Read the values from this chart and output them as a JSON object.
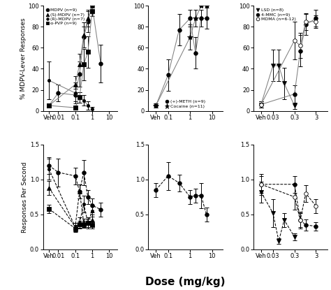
{
  "panel_top_left": {
    "series": [
      {
        "label": "MDPV (n=9)",
        "marker": "o",
        "markersize": 4,
        "x": [
          0,
          0.01,
          0.1,
          0.18,
          0.32,
          0.56,
          1.0,
          3.2
        ],
        "y": [
          5,
          17,
          15,
          35,
          70,
          85,
          100,
          45
        ],
        "yerr": [
          2,
          8,
          6,
          12,
          10,
          10,
          0,
          18
        ],
        "linestyle": "-",
        "linecolor": "gray",
        "markercolor": "black",
        "fillstyle": "full"
      },
      {
        "label": "(S)-MDPV (n=7)",
        "marker": "^",
        "markersize": 4,
        "x": [
          0,
          0.1,
          0.18,
          0.32,
          0.56,
          1.0
        ],
        "y": [
          5,
          25,
          44,
          72,
          88,
          100
        ],
        "yerr": [
          2,
          8,
          10,
          12,
          8,
          0
        ],
        "linestyle": "-",
        "linecolor": "gray",
        "markercolor": "black",
        "fillstyle": "full"
      },
      {
        "label": "(R)-MDPV (n=7)",
        "marker": ".",
        "markersize": 6,
        "x": [
          0,
          0.1,
          0.18,
          0.32,
          0.56,
          1.0
        ],
        "y": [
          29,
          17,
          13,
          10,
          5,
          2
        ],
        "yerr": [
          18,
          10,
          5,
          5,
          4,
          2
        ],
        "linestyle": "-",
        "linecolor": "gray",
        "markercolor": "black",
        "fillstyle": "full"
      },
      {
        "label": "α-PVP (n=9)",
        "marker": "s",
        "markersize": 4,
        "x": [
          0,
          0.1,
          0.18,
          0.32,
          0.56,
          1.0
        ],
        "y": [
          5,
          3,
          13,
          44,
          56,
          95
        ],
        "yerr": [
          2,
          2,
          5,
          15,
          15,
          5
        ],
        "linestyle": "-",
        "linecolor": "gray",
        "markercolor": "black",
        "fillstyle": "full"
      }
    ],
    "xticks_log": [
      0.01,
      0.1,
      1.0,
      10
    ],
    "xtick_labels": [
      "0.01",
      "0.1",
      "1",
      "10"
    ],
    "xmax_factor": 3.0,
    "ylim": [
      0,
      100
    ],
    "yticks": [
      0,
      20,
      40,
      60,
      80,
      100
    ],
    "ylabel": "% MDPV-Lever Responses",
    "legend_loc": "upper left",
    "legend": true
  },
  "panel_top_mid": {
    "series": [
      {
        "label": "(+)-METH (n=9)",
        "marker": "o",
        "markersize": 4,
        "x": [
          0,
          0.1,
          0.32,
          1.0,
          1.78,
          3.2,
          5.6
        ],
        "y": [
          5,
          34,
          77,
          88,
          55,
          88,
          88
        ],
        "yerr": [
          2,
          15,
          15,
          8,
          15,
          8,
          10
        ],
        "linestyle": "-",
        "linecolor": "gray",
        "markercolor": "black",
        "fillstyle": "full"
      },
      {
        "label": "Cocaine (n=11)",
        "marker": "*",
        "markersize": 6,
        "x": [
          0,
          1.0,
          1.78,
          3.2,
          5.6
        ],
        "y": [
          5,
          70,
          88,
          100,
          100
        ],
        "yerr": [
          2,
          12,
          8,
          0,
          0
        ],
        "linestyle": "-",
        "linecolor": "gray",
        "markercolor": "black",
        "fillstyle": "full"
      }
    ],
    "xticks_log": [
      0.1,
      1.0,
      10
    ],
    "xtick_labels": [
      "0.1",
      "1",
      "10"
    ],
    "xmax_factor": 3.0,
    "ylim": [
      0,
      100
    ],
    "yticks": [
      0,
      20,
      40,
      60,
      80,
      100
    ],
    "ylabel": "",
    "legend_loc": "lower center",
    "legend": true
  },
  "panel_top_right": {
    "series": [
      {
        "label": "LSD (n=8)",
        "marker": "v",
        "markersize": 4,
        "x": [
          0,
          0.03,
          0.056,
          0.1,
          0.3
        ],
        "y": [
          6,
          43,
          43,
          26,
          5
        ],
        "yerr": [
          3,
          15,
          15,
          15,
          3
        ],
        "linestyle": "-",
        "linecolor": "gray",
        "markercolor": "black",
        "fillstyle": "full"
      },
      {
        "label": "4-MMC (n=9)",
        "marker": "o",
        "markersize": 4,
        "x": [
          0,
          0.3,
          0.56,
          1.0,
          3.0
        ],
        "y": [
          6,
          16,
          57,
          82,
          88
        ],
        "yerr": [
          3,
          8,
          15,
          10,
          8
        ],
        "linestyle": "-",
        "linecolor": "gray",
        "markercolor": "black",
        "fillstyle": "full"
      },
      {
        "label": "MDMA (n=6-12)",
        "marker": "o",
        "markersize": 4,
        "x": [
          0,
          0.3,
          0.56,
          1.0,
          3.0
        ],
        "y": [
          6,
          67,
          62,
          85,
          85
        ],
        "yerr": [
          3,
          18,
          12,
          8,
          6
        ],
        "linestyle": "-",
        "linecolor": "gray",
        "markercolor": "black",
        "fillstyle": "none"
      }
    ],
    "xticks_log": [
      0.03,
      0.3,
      3.0
    ],
    "xtick_labels": [
      "0.03",
      "0.3",
      "3"
    ],
    "xmax_factor": 3.5,
    "ylim": [
      0,
      100
    ],
    "yticks": [
      0,
      20,
      40,
      60,
      80,
      100
    ],
    "ylabel": "",
    "legend_loc": "upper left",
    "legend": true
  },
  "panel_bot_left": {
    "series": [
      {
        "label": "MDPV (n=9)",
        "marker": "o",
        "markersize": 4,
        "x": [
          0,
          0.01,
          0.1,
          0.18,
          0.32,
          0.56,
          1.0,
          3.2
        ],
        "y": [
          1.2,
          1.1,
          1.05,
          0.83,
          1.1,
          0.75,
          0.63,
          0.57
        ],
        "yerr": [
          0.12,
          0.2,
          0.12,
          0.1,
          0.18,
          0.1,
          0.1,
          0.1
        ],
        "linestyle": "--",
        "linecolor": "black",
        "markercolor": "black",
        "fillstyle": "full"
      },
      {
        "label": "(S)-MDPV (n=7)",
        "marker": "^",
        "markersize": 4,
        "x": [
          0,
          0.1,
          0.18,
          0.32,
          0.56,
          1.0
        ],
        "y": [
          0.88,
          0.32,
          0.83,
          0.38,
          0.38,
          0.42
        ],
        "yerr": [
          0.1,
          0.06,
          0.1,
          0.06,
          0.06,
          0.08
        ],
        "linestyle": "--",
        "linecolor": "black",
        "markercolor": "black",
        "fillstyle": "full"
      },
      {
        "label": "(R)-MDPV (n=7)",
        "marker": ".",
        "markersize": 6,
        "x": [
          0,
          0.1,
          0.18,
          0.32,
          0.56,
          1.0
        ],
        "y": [
          1.15,
          0.32,
          0.38,
          0.65,
          0.38,
          0.55
        ],
        "yerr": [
          0.15,
          0.06,
          0.08,
          0.12,
          0.08,
          0.08
        ],
        "linestyle": "--",
        "linecolor": "black",
        "markercolor": "black",
        "fillstyle": "full"
      },
      {
        "label": "α-PVP (n=9)",
        "marker": "s",
        "markersize": 4,
        "x": [
          0,
          0.1,
          0.18,
          0.32,
          0.56,
          1.0
        ],
        "y": [
          0.58,
          0.3,
          0.36,
          0.36,
          0.38,
          0.35
        ],
        "yerr": [
          0.06,
          0.05,
          0.05,
          0.05,
          0.06,
          0.05
        ],
        "linestyle": "--",
        "linecolor": "black",
        "markercolor": "black",
        "fillstyle": "full"
      }
    ],
    "xticks_log": [
      0.01,
      0.1,
      1.0,
      10
    ],
    "xtick_labels": [
      "0.01",
      "0.1",
      "1",
      "10"
    ],
    "xmax_factor": 3.0,
    "ylim": [
      0.0,
      1.5
    ],
    "yticks": [
      0.0,
      0.5,
      1.0,
      1.5
    ],
    "ylabel": "Responses Per Second",
    "legend": false
  },
  "panel_bot_mid": {
    "series": [
      {
        "label": "(+)-METH (n=9)",
        "marker": "o",
        "markersize": 4,
        "x": [
          0,
          0.1,
          0.32,
          1.0,
          1.78,
          3.2,
          5.6
        ],
        "y": [
          0.85,
          1.05,
          0.95,
          0.75,
          0.77,
          0.77,
          0.5
        ],
        "yerr": [
          0.1,
          0.2,
          0.12,
          0.1,
          0.1,
          0.18,
          0.1
        ],
        "linestyle": "--",
        "linecolor": "black",
        "markercolor": "black",
        "fillstyle": "full"
      }
    ],
    "xticks_log": [
      0.1,
      1.0,
      10
    ],
    "xtick_labels": [
      "0.1",
      "1",
      "10"
    ],
    "xmax_factor": 3.0,
    "ylim": [
      0.0,
      1.5
    ],
    "yticks": [
      0.0,
      0.5,
      1.0,
      1.5
    ],
    "ylabel": "",
    "legend": false
  },
  "panel_bot_right": {
    "series": [
      {
        "label": "LSD (n=8)",
        "marker": "v",
        "markersize": 4,
        "x": [
          0,
          0.03,
          0.056,
          0.1,
          0.3
        ],
        "y": [
          0.82,
          0.52,
          0.12,
          0.42,
          0.18
        ],
        "yerr": [
          0.15,
          0.2,
          0.04,
          0.1,
          0.05
        ],
        "linestyle": "--",
        "linecolor": "black",
        "markercolor": "black",
        "fillstyle": "full"
      },
      {
        "label": "4-MMC (n=9)",
        "marker": "o",
        "markersize": 4,
        "x": [
          0,
          0.3,
          0.56,
          1.0,
          3.0
        ],
        "y": [
          0.93,
          0.93,
          0.42,
          0.35,
          0.33
        ],
        "yerr": [
          0.12,
          0.12,
          0.1,
          0.08,
          0.06
        ],
        "linestyle": "--",
        "linecolor": "black",
        "markercolor": "black",
        "fillstyle": "full"
      },
      {
        "label": "MDMA (n=6-12)",
        "marker": "o",
        "markersize": 4,
        "x": [
          0,
          0.3,
          0.56,
          1.0,
          3.0
        ],
        "y": [
          0.93,
          0.75,
          0.42,
          0.8,
          0.62
        ],
        "yerr": [
          0.15,
          0.18,
          0.12,
          0.12,
          0.1
        ],
        "linestyle": "--",
        "linecolor": "black",
        "markercolor": "black",
        "fillstyle": "none"
      }
    ],
    "xticks_log": [
      0.03,
      0.3,
      3.0
    ],
    "xtick_labels": [
      "0.03",
      "0.3",
      "3"
    ],
    "xmax_factor": 3.5,
    "ylim": [
      0.0,
      1.5
    ],
    "yticks": [
      0.0,
      0.5,
      1.0,
      1.5
    ],
    "ylabel": "",
    "legend": false
  },
  "xlabel": "Dose (mg/kg)",
  "fig_width": 4.74,
  "fig_height": 4.15
}
